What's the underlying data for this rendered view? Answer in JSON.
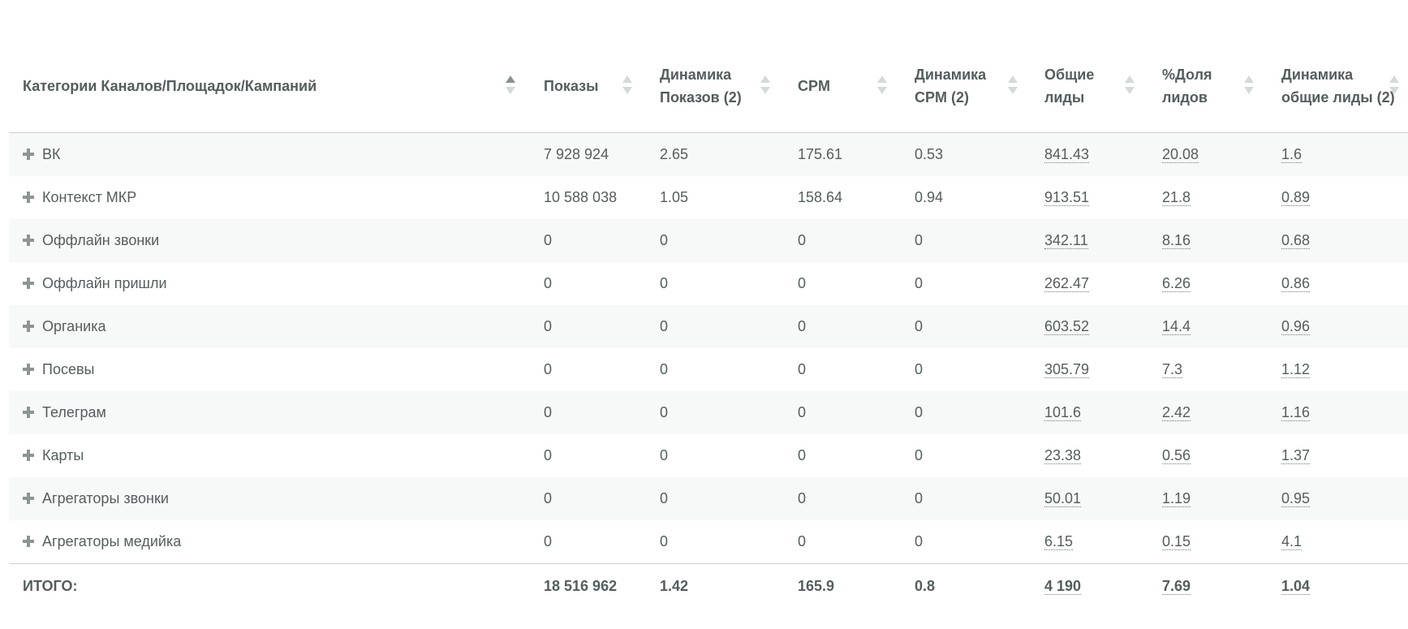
{
  "table": {
    "headers": [
      "Категории Каналов/Площадок/Кампаний",
      "Показы",
      "Динамика Показов (2)",
      "CPM",
      "Динамика CPM (2)",
      "Общие лиды",
      "%Доля лидов",
      "Динамика общие лиды (2)"
    ],
    "rows": [
      [
        "ВК",
        "7 928 924",
        "2.65",
        "175.61",
        "0.53",
        "841.43",
        "20.08",
        "1.6"
      ],
      [
        "Контекст МКР",
        "10 588 038",
        "1.05",
        "158.64",
        "0.94",
        "913.51",
        "21.8",
        "0.89"
      ],
      [
        "Оффлайн звонки",
        "0",
        "0",
        "0",
        "0",
        "342.11",
        "8.16",
        "0.68"
      ],
      [
        "Оффлайн пришли",
        "0",
        "0",
        "0",
        "0",
        "262.47",
        "6.26",
        "0.86"
      ],
      [
        "Органика",
        "0",
        "0",
        "0",
        "0",
        "603.52",
        "14.4",
        "0.96"
      ],
      [
        "Посевы",
        "0",
        "0",
        "0",
        "0",
        "305.79",
        "7.3",
        "1.12"
      ],
      [
        "Телеграм",
        "0",
        "0",
        "0",
        "0",
        "101.6",
        "2.42",
        "1.16"
      ],
      [
        "Карты",
        "0",
        "0",
        "0",
        "0",
        "23.38",
        "0.56",
        "1.37"
      ],
      [
        "Агрегаторы звонки",
        "0",
        "0",
        "0",
        "0",
        "50.01",
        "1.19",
        "0.95"
      ],
      [
        "Агрегаторы медийка",
        "0",
        "0",
        "0",
        "0",
        "6.15",
        "0.15",
        "4.1"
      ]
    ],
    "total": [
      "ИТОГО:",
      "18 516 962",
      "1.42",
      "165.9",
      "0.8",
      "4 190",
      "7.69",
      "1.04"
    ]
  }
}
